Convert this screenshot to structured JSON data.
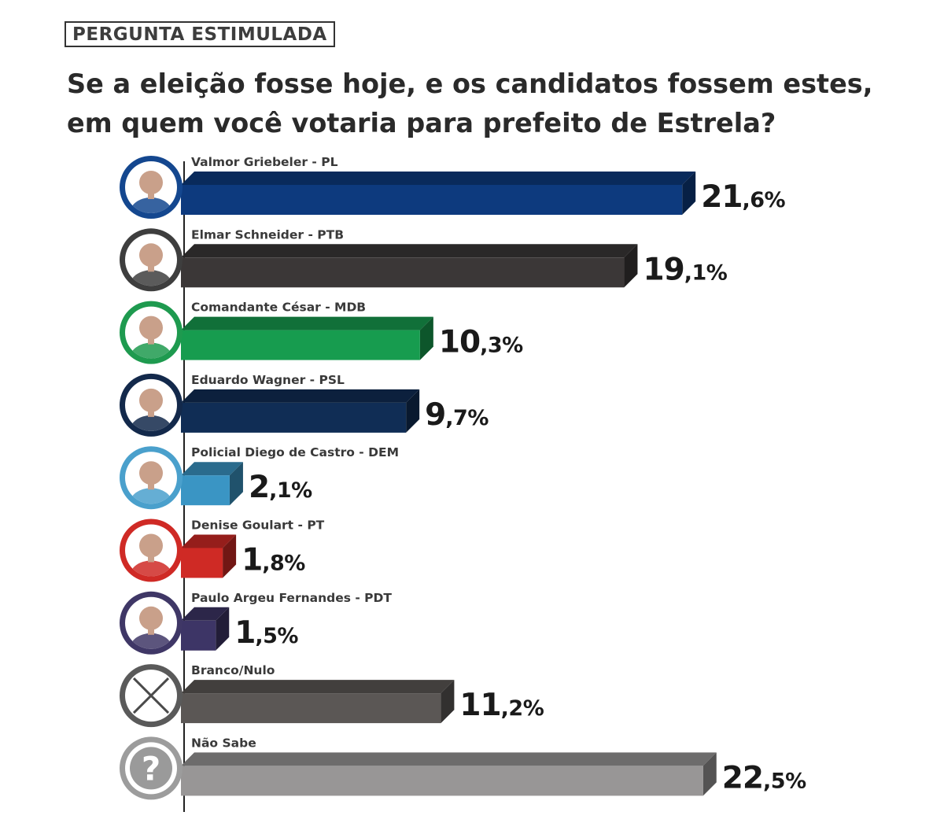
{
  "header": {
    "tag": "PERGUNTA ESTIMULADA",
    "title_line1": "Se a eleição fosse hoje, e os candidatos fossem estes,",
    "title_line2": "em quem você votaria para prefeito de Estrela?"
  },
  "colors": {
    "text": "#1a1a1a",
    "label": "#3a3a3a"
  },
  "chart_data": {
    "type": "bar",
    "orientation": "horizontal",
    "unit": "%",
    "categories": [
      "Valmor Griebeler - PL",
      "Elmar Schneider - PTB",
      "Comandante César - MDB",
      "Eduardo Wagner - PSL",
      "Policial Diego de Castro - DEM",
      "Denise Goulart - PT",
      "Paulo Argeu Fernandes - PDT",
      "Branco/Nulo",
      "Não Sabe"
    ],
    "values": [
      21.6,
      19.1,
      10.3,
      9.7,
      2.1,
      1.8,
      1.5,
      11.2,
      22.5
    ],
    "value_labels": [
      {
        "int": "21",
        "dec": ",6%"
      },
      {
        "int": "19",
        "dec": ",1%"
      },
      {
        "int": "10",
        "dec": ",3%"
      },
      {
        "int": "9",
        "dec": ",7%"
      },
      {
        "int": "2",
        "dec": ",1%"
      },
      {
        "int": "1",
        "dec": ",8%"
      },
      {
        "int": "1",
        "dec": ",5%"
      },
      {
        "int": "11",
        "dec": ",2%"
      },
      {
        "int": "22",
        "dec": ",5%"
      }
    ],
    "bar_colors": [
      "#0d3a7e",
      "#3b3737",
      "#179c4f",
      "#102d55",
      "#3a95c4",
      "#cf2a25",
      "#3d3566",
      "#5b5755",
      "#989696"
    ],
    "ring_colors": [
      "#14478f",
      "#3e3e3e",
      "#1e9a4f",
      "#13294b",
      "#4aa0cc",
      "#cf2a25",
      "#3f3766",
      "#5a5a5a",
      "#9c9c9c"
    ],
    "icons": [
      "avatar-icon",
      "avatar-icon",
      "avatar-icon",
      "avatar-icon",
      "avatar-icon",
      "avatar-icon",
      "avatar-icon",
      "x-mark-icon",
      "question-mark-icon"
    ],
    "grid": false,
    "legend": "none"
  }
}
